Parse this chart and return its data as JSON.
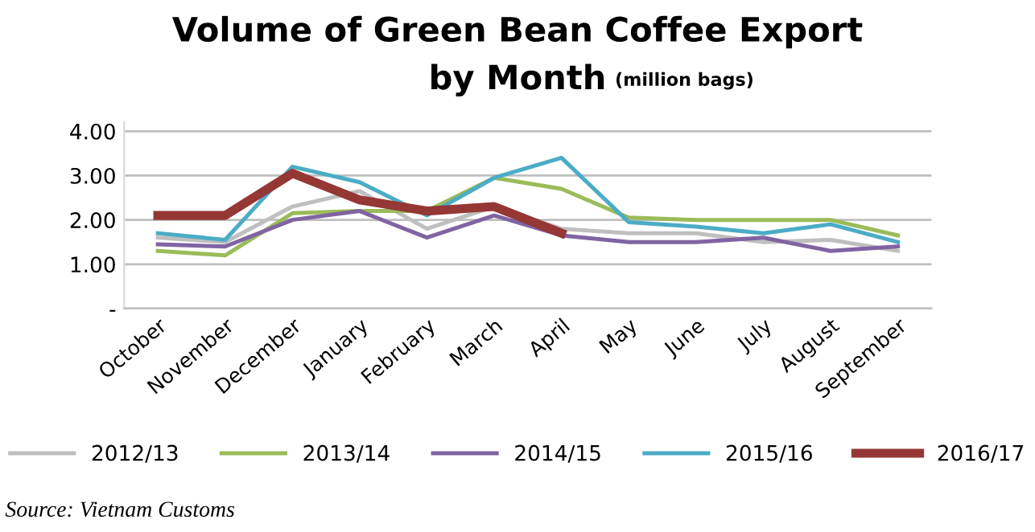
{
  "chart_data": {
    "type": "line",
    "title": "Volume of Green Bean Coffee Export\nby Month",
    "subtitle": "(million bags)",
    "categories": [
      "October",
      "November",
      "December",
      "January",
      "February",
      "March",
      "April",
      "May",
      "June",
      "July",
      "August",
      "September"
    ],
    "series": [
      {
        "name": "2012/13",
        "color": "#bfbfbf",
        "values": [
          1.6,
          1.5,
          2.3,
          2.65,
          1.8,
          2.3,
          1.8,
          1.7,
          1.7,
          1.5,
          1.55,
          1.3
        ]
      },
      {
        "name": "2013/14",
        "color": "#9bbb59",
        "values": [
          1.3,
          1.2,
          2.15,
          2.2,
          2.2,
          2.95,
          2.7,
          2.05,
          2.0,
          2.0,
          2.0,
          1.65
        ]
      },
      {
        "name": "2014/15",
        "color": "#8064a2",
        "values": [
          1.45,
          1.4,
          2.0,
          2.2,
          1.6,
          2.1,
          1.65,
          1.5,
          1.5,
          1.6,
          1.3,
          1.4
        ]
      },
      {
        "name": "2015/16",
        "color": "#4bacc6",
        "values": [
          1.7,
          1.55,
          3.2,
          2.85,
          2.1,
          2.95,
          3.4,
          1.95,
          1.85,
          1.7,
          1.9,
          1.5
        ]
      },
      {
        "name": "2016/17",
        "color": "#953735",
        "values": [
          2.1,
          2.1,
          3.05,
          2.45,
          2.2,
          2.3,
          1.7,
          null,
          null,
          null,
          null,
          null
        ]
      }
    ],
    "ylim": [
      0,
      4.2
    ],
    "yticks": [
      {
        "value": 0,
        "label": "-"
      },
      {
        "value": 1,
        "label": "1.00"
      },
      {
        "value": 2,
        "label": "2.00"
      },
      {
        "value": 3,
        "label": "3.00"
      },
      {
        "value": 4,
        "label": "4.00"
      }
    ],
    "grid": "y",
    "legend": "bottom",
    "marker": "none",
    "line_style": "solid",
    "annotations": [
      "Source: Vietnam Customs"
    ]
  }
}
